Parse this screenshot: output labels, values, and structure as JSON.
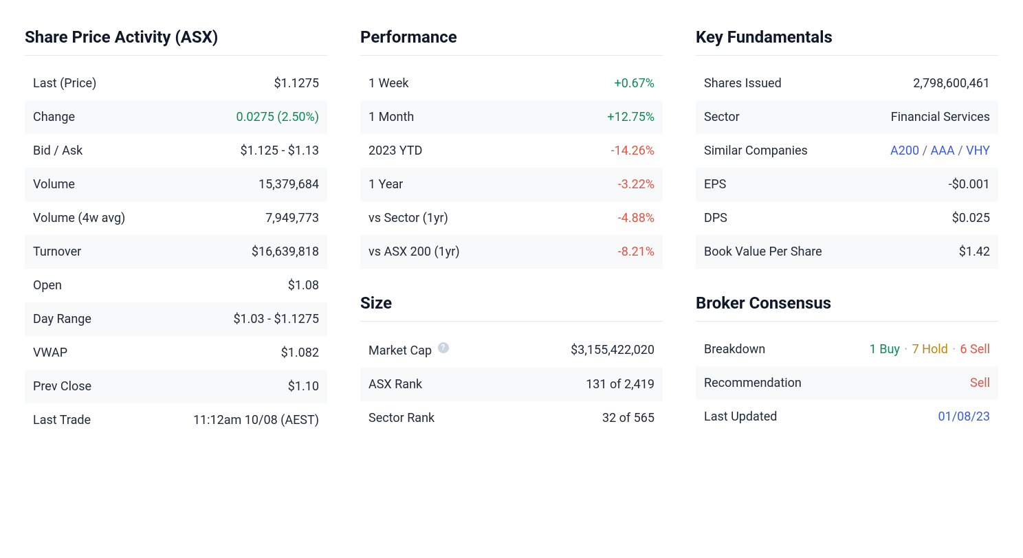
{
  "colors": {
    "text": "#1f2937",
    "heading": "#0f172a",
    "positive": "#108a55",
    "negative": "#e25444",
    "link": "#3b5bdb",
    "gold": "#b8860b",
    "row_alt_bg": "#f8f9fb",
    "border": "#e6e8eb",
    "help_bg": "#cbd5e1"
  },
  "share_price_activity": {
    "title": "Share Price Activity (ASX)",
    "rows": {
      "last_price": {
        "label": "Last (Price)",
        "value": "$1.1275"
      },
      "change": {
        "label": "Change",
        "value": "0.0275 (2.50%)",
        "style": "pos"
      },
      "bid_ask": {
        "label": "Bid / Ask",
        "value": "$1.125 - $1.13"
      },
      "volume": {
        "label": "Volume",
        "value": "15,379,684"
      },
      "volume_4w": {
        "label": "Volume (4w avg)",
        "value": "7,949,773"
      },
      "turnover": {
        "label": "Turnover",
        "value": "$16,639,818"
      },
      "open": {
        "label": "Open",
        "value": "$1.08"
      },
      "day_range": {
        "label": "Day Range",
        "value": "$1.03 - $1.1275"
      },
      "vwap": {
        "label": "VWAP",
        "value": "$1.082"
      },
      "prev_close": {
        "label": "Prev Close",
        "value": "$1.10"
      },
      "last_trade": {
        "label": "Last Trade",
        "value": "11:12am 10/08 (AEST)"
      }
    }
  },
  "performance": {
    "title": "Performance",
    "rows": {
      "w1": {
        "label": "1 Week",
        "value": "+0.67%",
        "style": "pos"
      },
      "m1": {
        "label": "1 Month",
        "value": "+12.75%",
        "style": "pos"
      },
      "ytd": {
        "label": "2023 YTD",
        "value": "-14.26%",
        "style": "neg"
      },
      "y1": {
        "label": "1 Year",
        "value": "-3.22%",
        "style": "neg"
      },
      "vs_sector": {
        "label": "vs Sector (1yr)",
        "value": "-4.88%",
        "style": "neg"
      },
      "vs_asx200": {
        "label": "vs ASX 200 (1yr)",
        "value": "-8.21%",
        "style": "neg"
      }
    }
  },
  "size": {
    "title": "Size",
    "rows": {
      "market_cap": {
        "label": "Market Cap",
        "value": "$3,155,422,020",
        "help": true
      },
      "asx_rank": {
        "label": "ASX Rank",
        "value": "131 of 2,419"
      },
      "sector_rank": {
        "label": "Sector Rank",
        "value": "32 of 565"
      }
    }
  },
  "key_fundamentals": {
    "title": "Key Fundamentals",
    "rows": {
      "shares_issued": {
        "label": "Shares Issued",
        "value": "2,798,600,461"
      },
      "sector": {
        "label": "Sector",
        "value": "Financial Services"
      },
      "similar": {
        "label": "Similar Companies",
        "links": [
          "A200",
          "AAA",
          "VHY"
        ],
        "sep": " / "
      },
      "eps": {
        "label": "EPS",
        "value": "-$0.001"
      },
      "dps": {
        "label": "DPS",
        "value": "$0.025"
      },
      "bvps": {
        "label": "Book Value Per Share",
        "value": "$1.42"
      }
    }
  },
  "broker_consensus": {
    "title": "Broker Consensus",
    "rows": {
      "breakdown": {
        "label": "Breakdown",
        "buy": "1 Buy",
        "hold": "7 Hold",
        "sell": "6 Sell"
      },
      "recommendation": {
        "label": "Recommendation",
        "value": "Sell",
        "style": "neg"
      },
      "last_updated": {
        "label": "Last Updated",
        "value": "01/08/23",
        "style": "link"
      }
    }
  }
}
